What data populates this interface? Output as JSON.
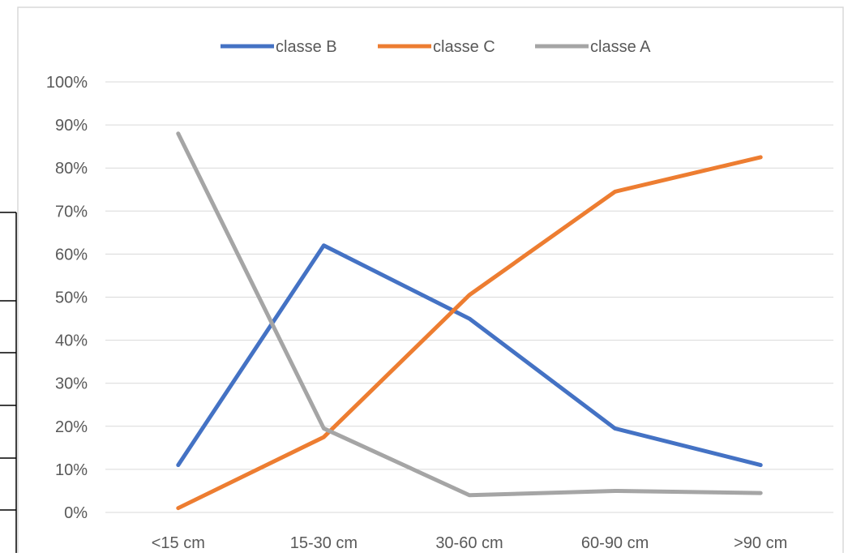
{
  "chart_data": {
    "type": "line",
    "title": "",
    "xlabel": "",
    "ylabel": "",
    "categories": [
      "<15 cm",
      "15-30 cm",
      "30-60 cm",
      "60-90 cm",
      ">90 cm"
    ],
    "ylim": [
      0,
      100
    ],
    "yticks": [
      "0%",
      "10%",
      "20%",
      "30%",
      "40%",
      "50%",
      "60%",
      "70%",
      "80%",
      "90%",
      "100%"
    ],
    "grid": true,
    "legend_position": "top",
    "series": [
      {
        "name": "classe B",
        "color": "#4472C4",
        "values": [
          11,
          62,
          45,
          19.5,
          11
        ]
      },
      {
        "name": "classe C",
        "color": "#ED7D31",
        "values": [
          1,
          17.5,
          50.5,
          74.5,
          82.5
        ]
      },
      {
        "name": "classe A",
        "color": "#A5A5A5",
        "values": [
          88,
          19.5,
          4,
          5,
          4.5
        ]
      }
    ]
  }
}
